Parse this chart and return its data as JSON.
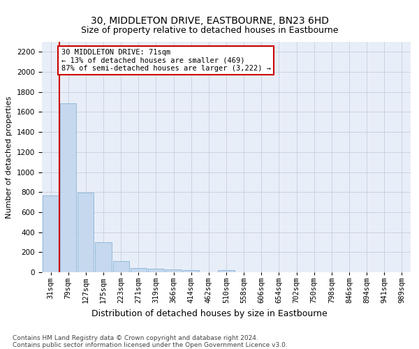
{
  "title": "30, MIDDLETON DRIVE, EASTBOURNE, BN23 6HD",
  "subtitle": "Size of property relative to detached houses in Eastbourne",
  "xlabel": "Distribution of detached houses by size in Eastbourne",
  "ylabel": "Number of detached properties",
  "categories": [
    "31sqm",
    "79sqm",
    "127sqm",
    "175sqm",
    "223sqm",
    "271sqm",
    "319sqm",
    "366sqm",
    "414sqm",
    "462sqm",
    "510sqm",
    "558sqm",
    "606sqm",
    "654sqm",
    "702sqm",
    "750sqm",
    "798sqm",
    "846sqm",
    "894sqm",
    "941sqm",
    "989sqm"
  ],
  "values": [
    770,
    1690,
    795,
    300,
    115,
    45,
    32,
    27,
    22,
    0,
    22,
    0,
    0,
    0,
    0,
    0,
    0,
    0,
    0,
    0,
    0
  ],
  "bar_color": "#c5d8ee",
  "bar_edge_color": "#7aaad0",
  "vline_color": "#cc0000",
  "vline_pos": 0.5,
  "annotation_text": "30 MIDDLETON DRIVE: 71sqm\n← 13% of detached houses are smaller (469)\n87% of semi-detached houses are larger (3,222) →",
  "box_color": "#cc0000",
  "ylim": [
    0,
    2300
  ],
  "yticks": [
    0,
    200,
    400,
    600,
    800,
    1000,
    1200,
    1400,
    1600,
    1800,
    2000,
    2200
  ],
  "bg_color": "#e8eef8",
  "grid_color": "#c0c8d8",
  "footnote": "Contains HM Land Registry data © Crown copyright and database right 2024.\nContains public sector information licensed under the Open Government Licence v3.0.",
  "title_fontsize": 10,
  "subtitle_fontsize": 9,
  "ylabel_fontsize": 8,
  "xlabel_fontsize": 9,
  "tick_fontsize": 7.5,
  "annot_fontsize": 7.5,
  "footnote_fontsize": 6.5
}
